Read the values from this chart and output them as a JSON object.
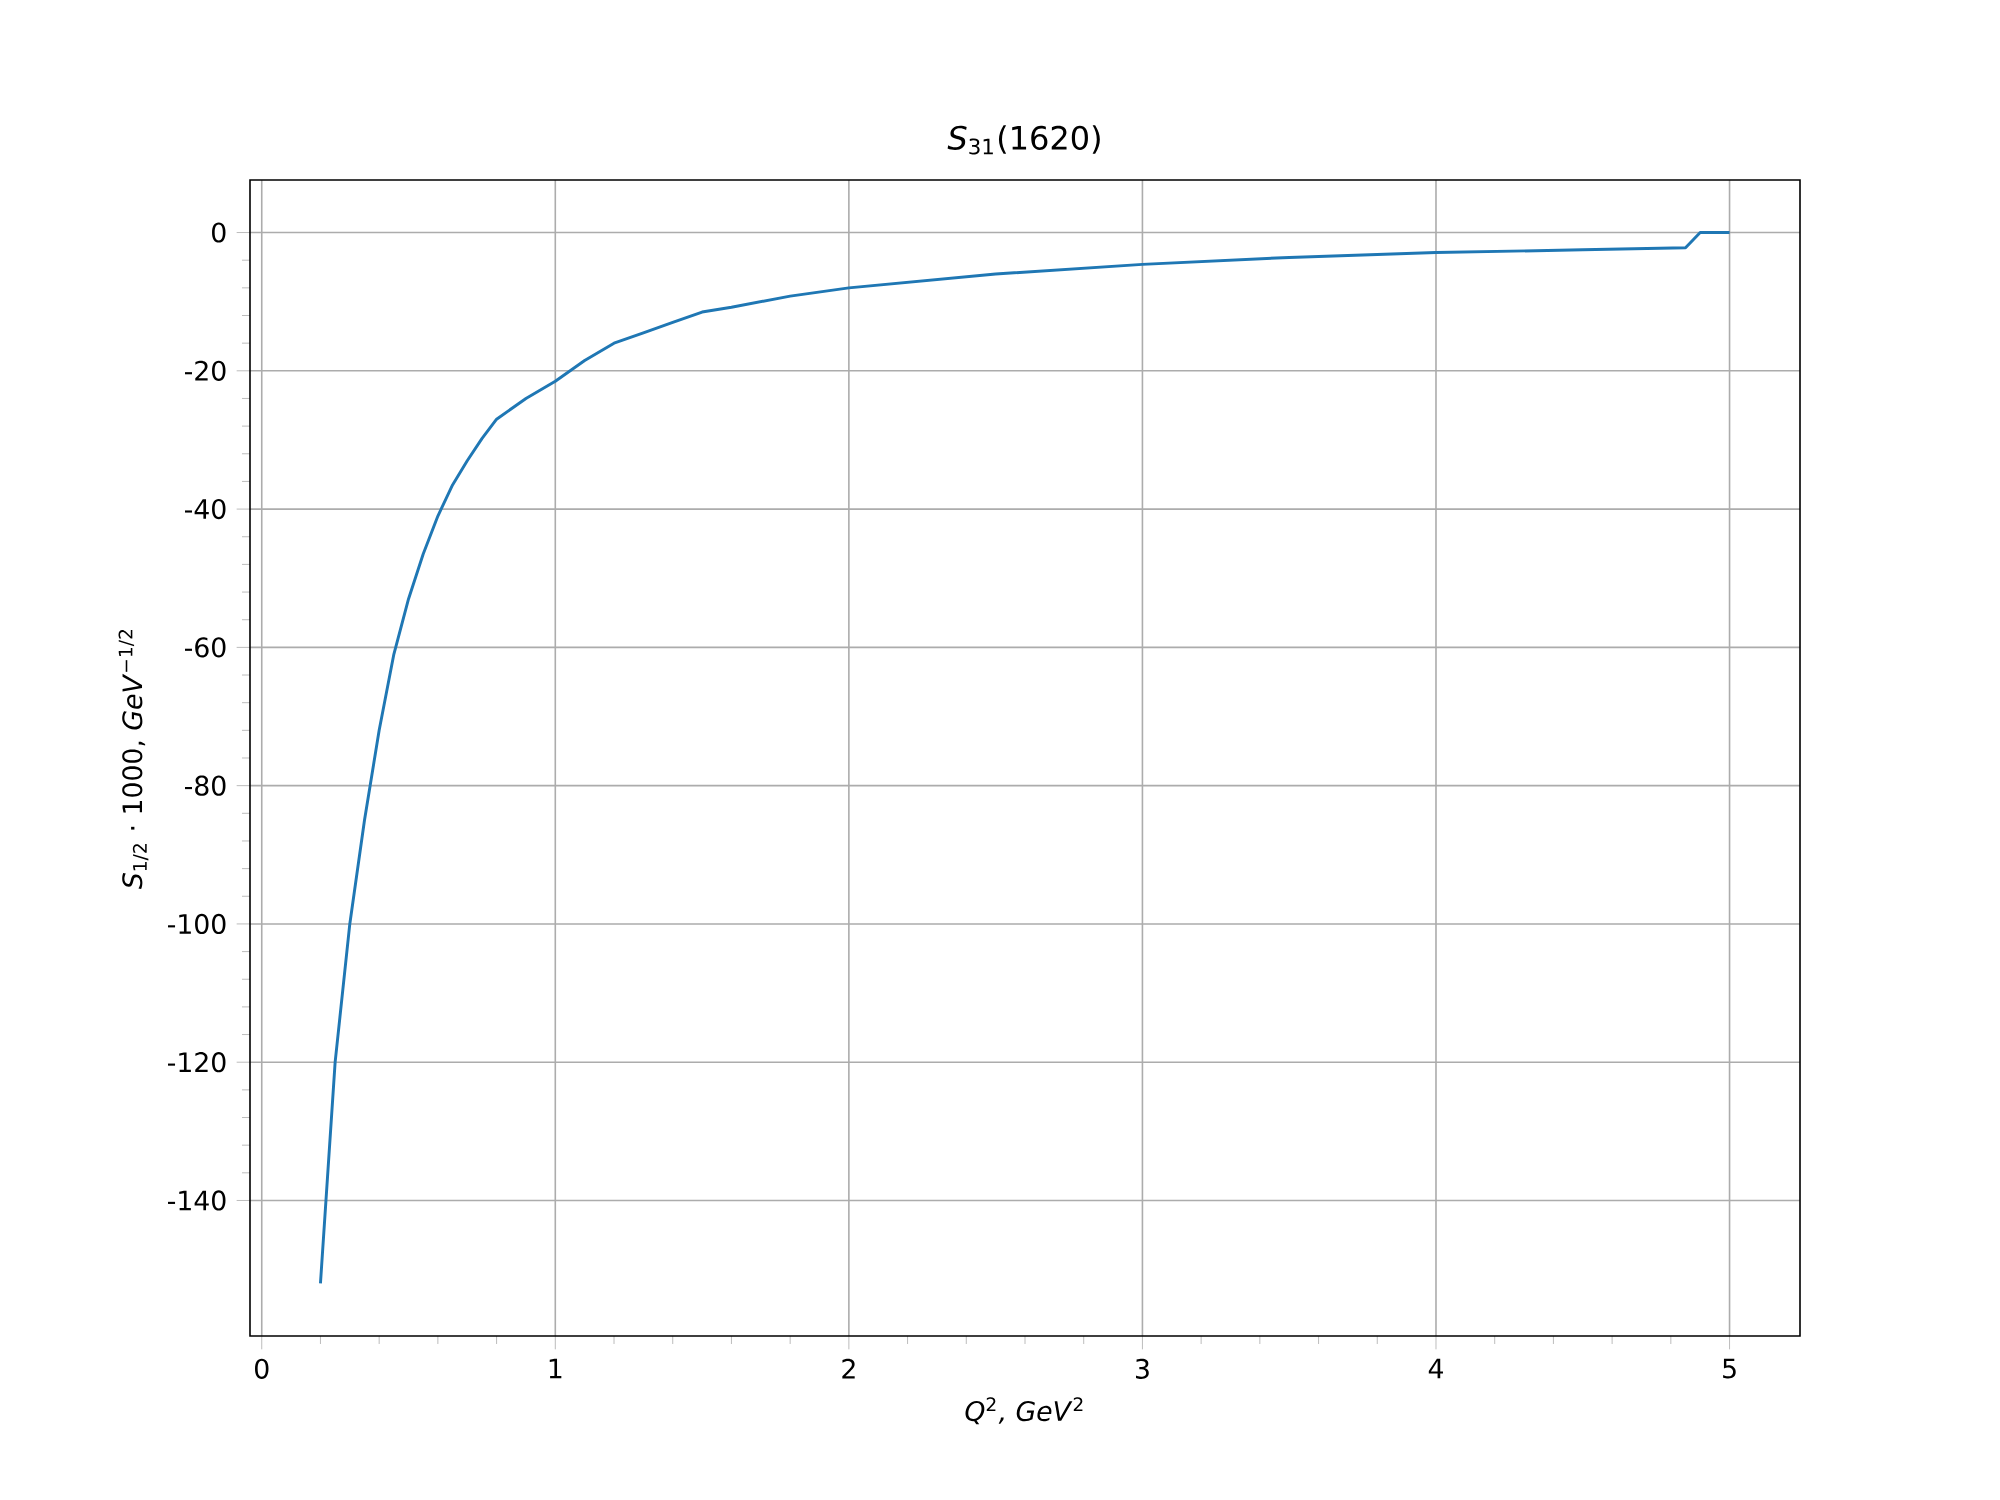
{
  "chart_data": {
    "type": "line",
    "title": "*S*$_{31}$(1620)",
    "xlabel": "*Q*$^{2}$*, GeV*$^{2}$",
    "ylabel": "*S*$_{1/2}$ · 1000, *GeV*$^{−1/2}$",
    "x": [
      0.2,
      0.25,
      0.3,
      0.35,
      0.4,
      0.45,
      0.5,
      0.55,
      0.6,
      0.65,
      0.7,
      0.75,
      0.8,
      0.9,
      1.0,
      1.1,
      1.2,
      1.3,
      1.4,
      1.5,
      1.6,
      1.8,
      2.0,
      2.5,
      3.0,
      3.5,
      4.0,
      4.5,
      4.85,
      4.9,
      5.0
    ],
    "series": [
      {
        "color": "#1f77b4",
        "values": [
          -152,
          -120,
          -100,
          -85,
          -72,
          -61,
          -53,
          -46.5,
          -41,
          -36.5,
          -33,
          -29.8,
          -27,
          -24,
          -21.5,
          -18.5,
          -16,
          -14.5,
          -13,
          -11.5,
          -10.8,
          -9.2,
          -8,
          -6,
          -4.6,
          -3.6,
          -2.9,
          -2.5,
          -2.2,
          0,
          0
        ]
      }
    ],
    "xlim": [
      -0.04,
      5.24
    ],
    "ylim": [
      -159.6,
      7.6
    ],
    "xticks": [
      0,
      1,
      2,
      3,
      4,
      5
    ],
    "yticks": [
      -140,
      -120,
      -100,
      -80,
      -60,
      -40,
      -20,
      0
    ],
    "grid": true,
    "marker": "none",
    "line_style": "solid"
  }
}
